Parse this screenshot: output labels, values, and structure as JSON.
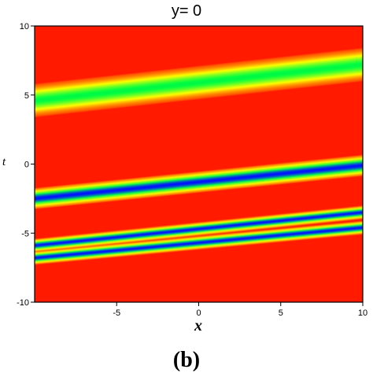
{
  "chart_data": {
    "type": "heatmap",
    "title": "y= 0",
    "caption": "(b)",
    "xlabel": "x",
    "ylabel": "t",
    "xlim": [
      -10,
      10
    ],
    "ylim": [
      -10,
      10
    ],
    "xticks": [
      {
        "value": -5,
        "label": "-5"
      },
      {
        "value": 0,
        "label": "0"
      },
      {
        "value": 5,
        "label": "5"
      },
      {
        "value": 10,
        "label": "10"
      }
    ],
    "yticks": [
      {
        "value": 10,
        "label": "10"
      },
      {
        "value": 5,
        "label": "5"
      },
      {
        "value": 0,
        "label": "0"
      },
      {
        "value": -5,
        "label": "-5"
      },
      {
        "value": -10,
        "label": "-10"
      }
    ],
    "background_color": "#ff1a00",
    "colormap": [
      "#ff1a00",
      "#ffff00",
      "#00ff40",
      "#0010ff"
    ],
    "bands": [
      {
        "name": "band-1",
        "t_at_x_min": 4.6,
        "t_at_x_max": 7.2,
        "width": 0.95,
        "peak": 0.68
      },
      {
        "name": "band-2",
        "t_at_x_min": -2.5,
        "t_at_x_max": -0.1,
        "width": 0.6,
        "peak": 1.0
      },
      {
        "name": "band-3",
        "t_at_x_min": -5.9,
        "t_at_x_max": -3.5,
        "width": 0.38,
        "peak": 1.0
      },
      {
        "name": "band-4",
        "t_at_x_min": -6.8,
        "t_at_x_max": -4.6,
        "width": 0.38,
        "peak": 1.0
      }
    ]
  }
}
